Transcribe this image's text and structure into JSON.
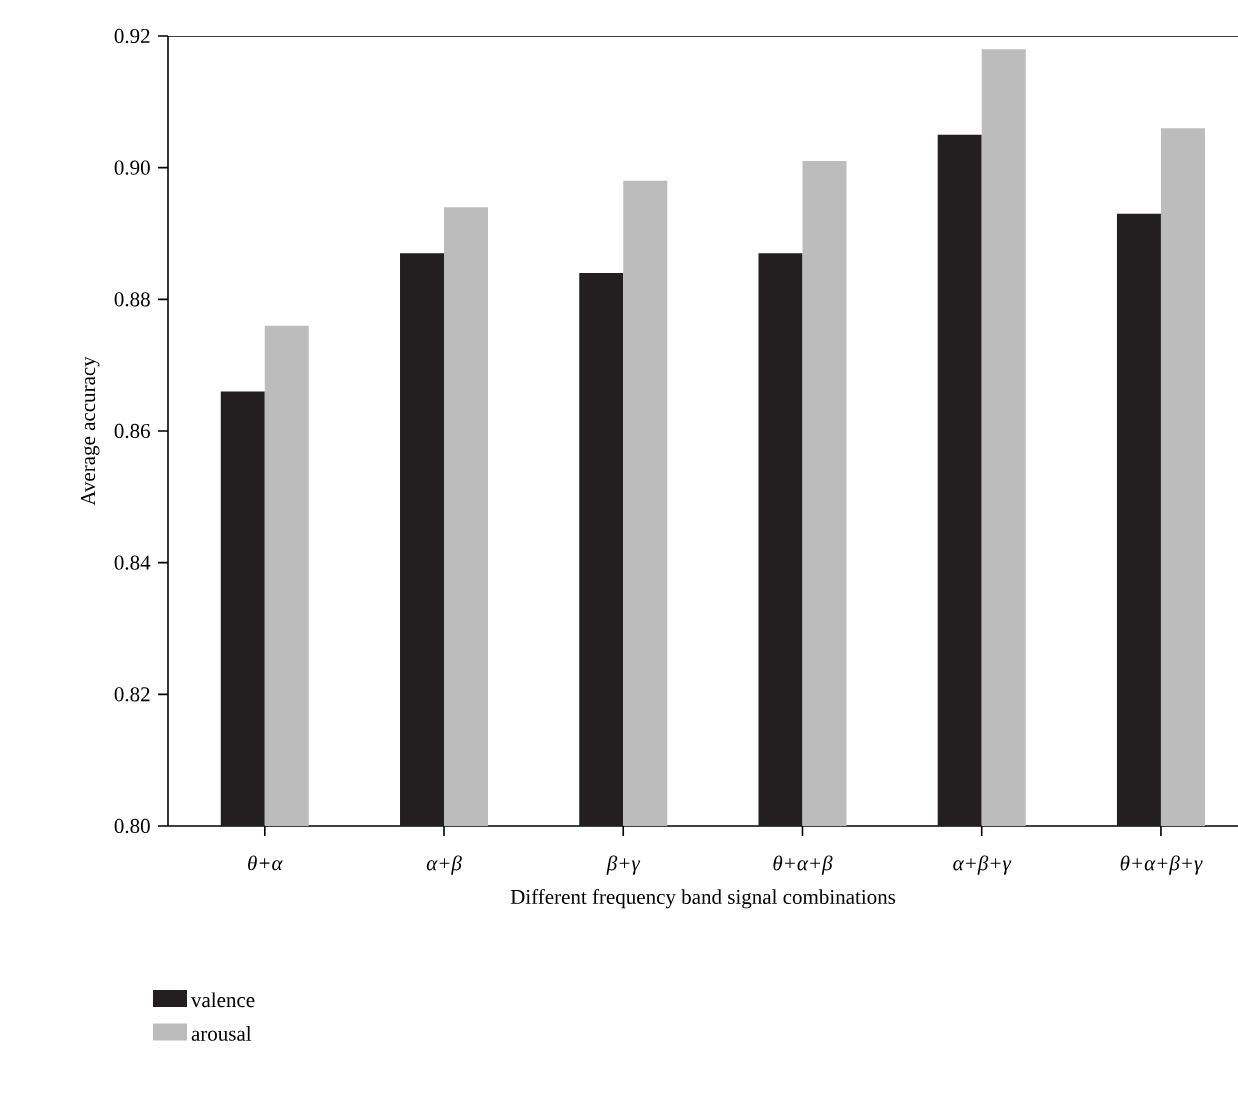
{
  "chart_data": {
    "type": "bar",
    "xlabel": "Different frequency band signal combinations",
    "ylabel": "Average accuracy",
    "categories": [
      "θ+α",
      "α+β",
      "β+γ",
      "θ+α+β",
      "α+β+γ",
      "θ+α+β+γ"
    ],
    "series": [
      {
        "name": "valence",
        "color": "#231f20",
        "values": [
          0.866,
          0.887,
          0.884,
          0.887,
          0.905,
          0.893
        ]
      },
      {
        "name": "arousal",
        "color": "#bcbcbc",
        "values": [
          0.876,
          0.894,
          0.898,
          0.901,
          0.918,
          0.906
        ]
      }
    ],
    "ylim": [
      0.8,
      0.92
    ],
    "yticks": [
      {
        "value": 0.8,
        "label": "0.80"
      },
      0.82,
      0.84,
      0.86,
      0.88,
      {
        "value": 0.9,
        "label": "0.90"
      },
      0.92
    ],
    "grid": false,
    "legend": "bottom left"
  }
}
